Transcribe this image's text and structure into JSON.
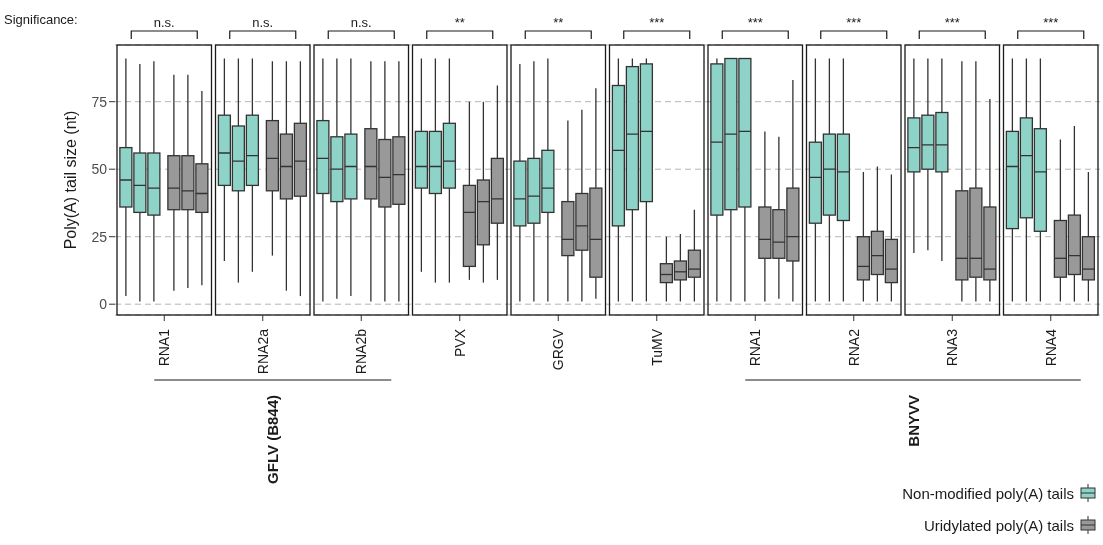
{
  "chart_data": {
    "type": "box",
    "ylabel": "Poly(A) tail size (nt)",
    "categories": [
      "RNA1",
      "RNA2a",
      "RNA2b",
      "PVX",
      "GRGV",
      "TuMV",
      "RNA1",
      "RNA2",
      "RNA3",
      "RNA4"
    ],
    "ylim": [
      -4,
      96
    ],
    "yticks": [
      0,
      25,
      50,
      75
    ],
    "grid": "y",
    "legend": "bottom right",
    "annotations": [
      "Significance:",
      "n.s.",
      "n.s.",
      "n.s.",
      "**",
      "**",
      "***",
      "***",
      "***",
      "***",
      "***",
      "GFLV (B844)",
      "BNYVV"
    ],
    "series": [
      {
        "name": "Non-modified poly(A) tails",
        "color": "#8dd3c7",
        "boxes": [
          {
            "low": 3,
            "q1": 36,
            "median": 46,
            "q3": 58,
            "high": 91
          },
          {
            "low": 16,
            "q1": 44,
            "median": 56,
            "q3": 70,
            "high": 91
          },
          {
            "low": 1,
            "q1": 41,
            "median": 54,
            "q3": 68,
            "high": 91
          },
          {
            "low": 12,
            "q1": 43,
            "median": 51,
            "q3": 64,
            "high": 91
          },
          {
            "low": 1,
            "q1": 29,
            "median": 39,
            "q3": 53,
            "high": 89
          },
          {
            "low": 1,
            "q1": 29,
            "median": 57,
            "q3": 81,
            "high": 91
          },
          {
            "low": 1,
            "q1": 33,
            "median": 60,
            "q3": 89,
            "high": 91
          },
          {
            "low": 1,
            "q1": 30,
            "median": 47,
            "q3": 60,
            "high": 91
          },
          {
            "low": 19,
            "q1": 49,
            "median": 58,
            "q3": 69,
            "high": 91
          },
          {
            "low": 1,
            "q1": 28,
            "median": 51,
            "q3": 64,
            "high": 91
          }
        ]
      },
      {
        "color": "#8dd3c7",
        "boxes": [
          {
            "low": 1,
            "q1": 34,
            "median": 44,
            "q3": 56,
            "high": 89
          },
          {
            "low": 8,
            "q1": 42,
            "median": 53,
            "q3": 66,
            "high": 91
          },
          {
            "low": 2,
            "q1": 38,
            "median": 50,
            "q3": 62,
            "high": 91
          },
          {
            "low": 8,
            "q1": 41,
            "median": 51,
            "q3": 64,
            "high": 91
          },
          {
            "low": 1,
            "q1": 30,
            "median": 40,
            "q3": 54,
            "high": 90
          },
          {
            "low": 1,
            "q1": 35,
            "median": 63,
            "q3": 88,
            "high": 91
          },
          {
            "low": 1,
            "q1": 35,
            "median": 63,
            "q3": 91,
            "high": 91
          },
          {
            "low": 1,
            "q1": 33,
            "median": 50,
            "q3": 63,
            "high": 91
          },
          {
            "low": 20,
            "q1": 50,
            "median": 59,
            "q3": 70,
            "high": 91
          },
          {
            "low": 1,
            "q1": 32,
            "median": 55,
            "q3": 69,
            "high": 91
          }
        ]
      },
      {
        "color": "#8dd3c7",
        "boxes": [
          {
            "low": 1,
            "q1": 33,
            "median": 43,
            "q3": 56,
            "high": 90
          },
          {
            "low": 12,
            "q1": 44,
            "median": 55,
            "q3": 70,
            "high": 91
          },
          {
            "low": 3,
            "q1": 39,
            "median": 51,
            "q3": 63,
            "high": 91
          },
          {
            "low": 8,
            "q1": 43,
            "median": 53,
            "q3": 67,
            "high": 91
          },
          {
            "low": 1,
            "q1": 34,
            "median": 43,
            "q3": 57,
            "high": 91
          },
          {
            "low": 1,
            "q1": 38,
            "median": 64,
            "q3": 89,
            "high": 91
          },
          {
            "low": 1,
            "q1": 36,
            "median": 64,
            "q3": 91,
            "high": 91
          },
          {
            "low": 1,
            "q1": 31,
            "median": 49,
            "q3": 63,
            "high": 91
          },
          {
            "low": 16,
            "q1": 49,
            "median": 59,
            "q3": 71,
            "high": 91
          },
          {
            "low": 1,
            "q1": 27,
            "median": 49,
            "q3": 65,
            "high": 91
          }
        ]
      },
      {
        "name": "Uridylated poly(A) tails",
        "color": "#999999",
        "boxes": [
          {
            "low": 5,
            "q1": 35,
            "median": 43,
            "q3": 55,
            "high": 85
          },
          {
            "low": 18,
            "q1": 42,
            "median": 54,
            "q3": 68,
            "high": 90
          },
          {
            "low": 1,
            "q1": 39,
            "median": 51,
            "q3": 65,
            "high": 90
          },
          {
            "low": 9,
            "q1": 14,
            "median": 34,
            "q3": 44,
            "high": 75
          },
          {
            "low": 1,
            "q1": 18,
            "median": 24,
            "q3": 38,
            "high": 68
          },
          {
            "low": 1,
            "q1": 8,
            "median": 11,
            "q3": 15,
            "high": 25
          },
          {
            "low": 1,
            "q1": 17,
            "median": 24,
            "q3": 36,
            "high": 64
          },
          {
            "low": 1,
            "q1": 9,
            "median": 14,
            "q3": 25,
            "high": 49
          },
          {
            "low": 1,
            "q1": 9,
            "median": 17,
            "q3": 42,
            "high": 90
          },
          {
            "low": 1,
            "q1": 10,
            "median": 17,
            "q3": 31,
            "high": 61
          }
        ]
      },
      {
        "color": "#999999",
        "boxes": [
          {
            "low": 6,
            "q1": 35,
            "median": 42,
            "q3": 55,
            "high": 85
          },
          {
            "low": 5,
            "q1": 39,
            "median": 51,
            "q3": 63,
            "high": 90
          },
          {
            "low": 1,
            "q1": 36,
            "median": 47,
            "q3": 61,
            "high": 90
          },
          {
            "low": 8,
            "q1": 22,
            "median": 38,
            "q3": 46,
            "high": 75
          },
          {
            "low": 1,
            "q1": 20,
            "median": 29,
            "q3": 41,
            "high": 72
          },
          {
            "low": 1,
            "q1": 9,
            "median": 12,
            "q3": 16,
            "high": 26
          },
          {
            "low": 2,
            "q1": 17,
            "median": 23,
            "q3": 35,
            "high": 62
          },
          {
            "low": 1,
            "q1": 11,
            "median": 18,
            "q3": 27,
            "high": 51
          },
          {
            "low": 1,
            "q1": 10,
            "median": 17,
            "q3": 43,
            "high": 90
          },
          {
            "low": 1,
            "q1": 11,
            "median": 18,
            "q3": 33,
            "high": 66
          }
        ]
      },
      {
        "color": "#999999",
        "boxes": [
          {
            "low": 7,
            "q1": 34,
            "median": 41,
            "q3": 52,
            "high": 79
          },
          {
            "low": 3,
            "q1": 40,
            "median": 53,
            "q3": 67,
            "high": 90
          },
          {
            "low": 1,
            "q1": 37,
            "median": 48,
            "q3": 62,
            "high": 90
          },
          {
            "low": 9,
            "q1": 30,
            "median": 39,
            "q3": 54,
            "high": 81
          },
          {
            "low": 2,
            "q1": 10,
            "median": 24,
            "q3": 43,
            "high": 80
          },
          {
            "low": 1,
            "q1": 10,
            "median": 13,
            "q3": 20,
            "high": 35
          },
          {
            "low": 1,
            "q1": 16,
            "median": 25,
            "q3": 43,
            "high": 83
          },
          {
            "low": 1,
            "q1": 8,
            "median": 13,
            "q3": 24,
            "high": 48
          },
          {
            "low": 1,
            "q1": 9,
            "median": 13,
            "q3": 36,
            "high": 76
          },
          {
            "low": 1,
            "q1": 9,
            "median": 13,
            "q3": 25,
            "high": 49
          }
        ]
      }
    ]
  }
}
